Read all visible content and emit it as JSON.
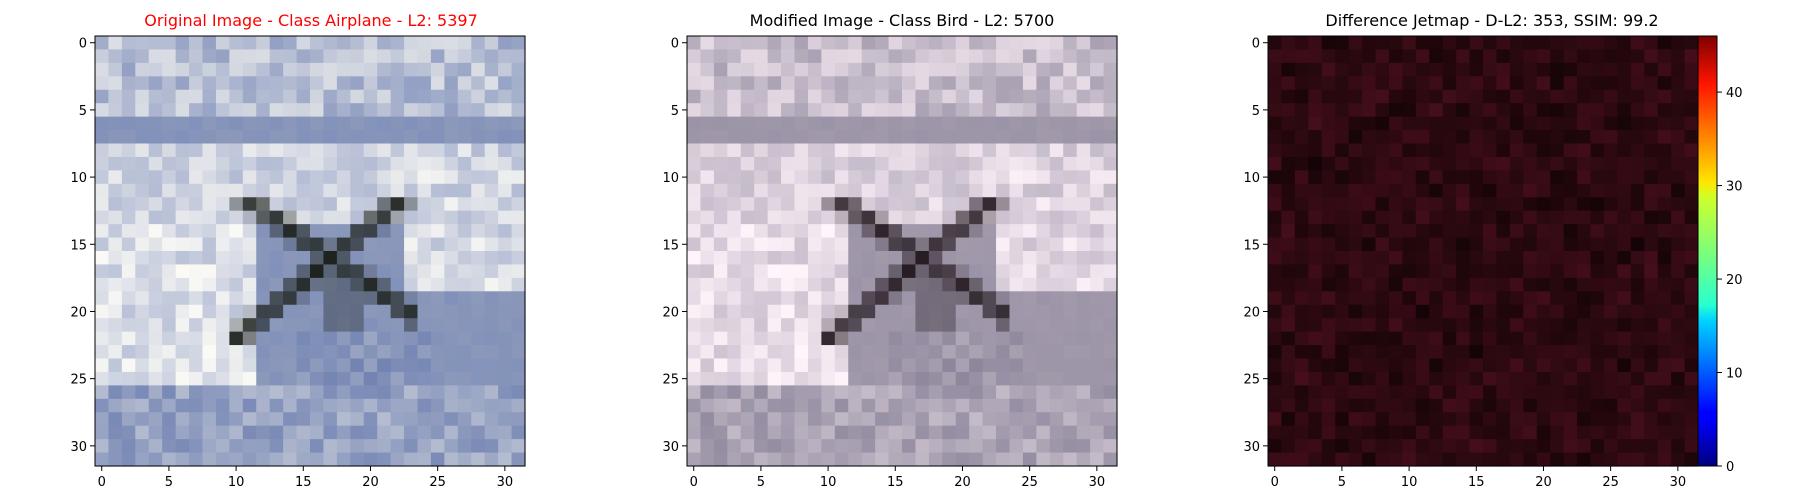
{
  "colors": {
    "title_original": "#ff0000",
    "title_default": "#000000",
    "axis": "#000000",
    "background": "#ffffff"
  },
  "chart_data": [
    {
      "type": "heatmap",
      "title": "Original Image - Class Airplane - L2: 5397",
      "title_color": "#ff0000",
      "xlim": [
        -0.5,
        31.5
      ],
      "ylim": [
        31.5,
        -0.5
      ],
      "xticks": [
        0,
        5,
        10,
        15,
        20,
        25,
        30
      ],
      "yticks": [
        0,
        5,
        10,
        15,
        20,
        25,
        30
      ],
      "xtick_labels": [
        "0",
        "5",
        "10",
        "15",
        "20",
        "25",
        "30"
      ],
      "ytick_labels": [
        "0",
        "5",
        "10",
        "15",
        "20",
        "25",
        "30"
      ],
      "grid": false,
      "content": "32x32 RGB image"
    },
    {
      "type": "heatmap",
      "title": "Modified Image - Class Bird - L2: 5700",
      "title_color": "#000000",
      "xlim": [
        -0.5,
        31.5
      ],
      "ylim": [
        31.5,
        -0.5
      ],
      "xticks": [
        0,
        5,
        10,
        15,
        20,
        25,
        30
      ],
      "yticks": [
        0,
        5,
        10,
        15,
        20,
        25,
        30
      ],
      "xtick_labels": [
        "0",
        "5",
        "10",
        "15",
        "20",
        "25",
        "30"
      ],
      "ytick_labels": [
        "0",
        "5",
        "10",
        "15",
        "20",
        "25",
        "30"
      ],
      "grid": false,
      "content": "32x32 RGB image"
    },
    {
      "type": "heatmap",
      "title": "Difference Jetmap - D-L2: 353, SSIM: 99.2",
      "title_color": "#000000",
      "xlim": [
        -0.5,
        31.5
      ],
      "ylim": [
        31.5,
        -0.5
      ],
      "xticks": [
        0,
        5,
        10,
        15,
        20,
        25,
        30
      ],
      "yticks": [
        0,
        5,
        10,
        15,
        20,
        25,
        30
      ],
      "xtick_labels": [
        "0",
        "5",
        "10",
        "15",
        "20",
        "25",
        "30"
      ],
      "ytick_labels": [
        "0",
        "5",
        "10",
        "15",
        "20",
        "25",
        "30"
      ],
      "grid": false,
      "colormap": "jet",
      "colorbar": {
        "range": [
          0,
          46
        ],
        "ticks": [
          0,
          10,
          20,
          30,
          40
        ],
        "tick_labels": [
          "0",
          "10",
          "20",
          "30",
          "40"
        ]
      }
    }
  ]
}
